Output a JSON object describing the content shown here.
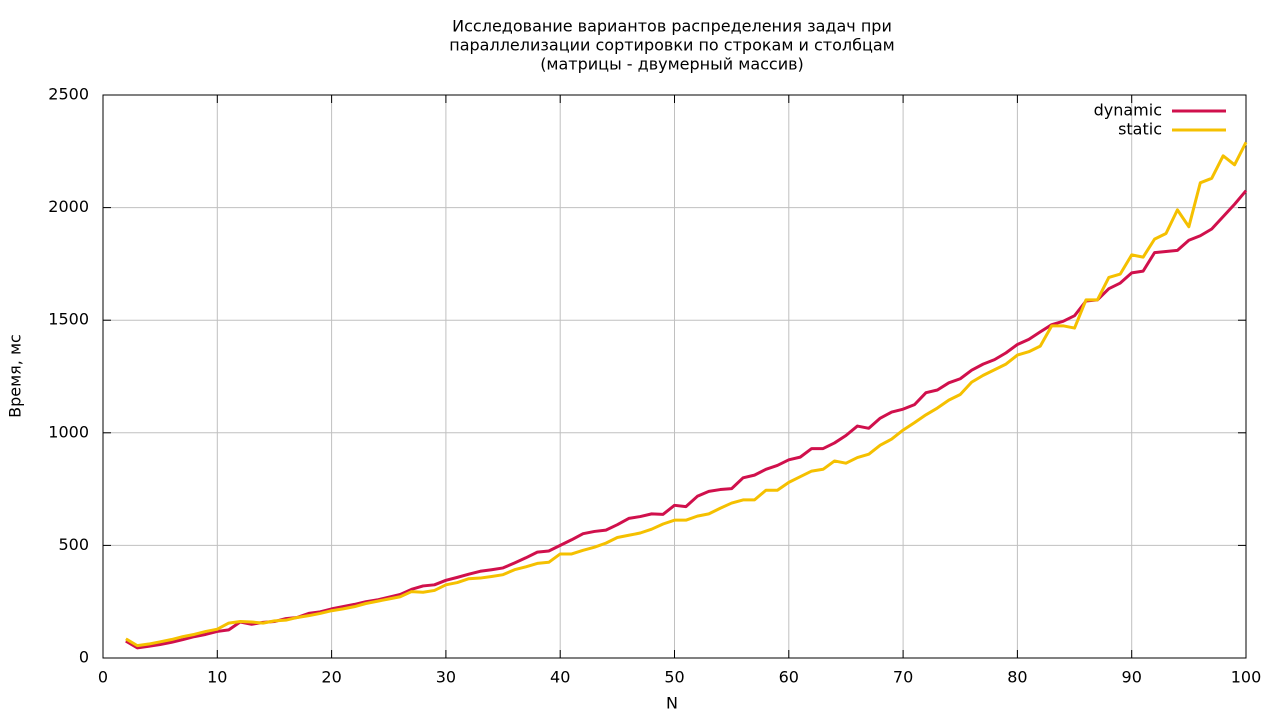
{
  "chart_data": {
    "type": "line",
    "title": [
      "Исследование вариантов распределения задач при",
      "параллелизации сортировки по строкам и столбцам",
      "(матрицы - двумерный массив)"
    ],
    "x_label": "N",
    "y_label": "Время, мс",
    "x": [
      2,
      3,
      4,
      5,
      6,
      7,
      8,
      9,
      10,
      11,
      12,
      13,
      14,
      15,
      16,
      17,
      18,
      19,
      20,
      21,
      22,
      23,
      24,
      25,
      26,
      27,
      28,
      29,
      30,
      31,
      32,
      33,
      34,
      35,
      36,
      37,
      38,
      39,
      40,
      41,
      42,
      43,
      44,
      45,
      46,
      47,
      48,
      49,
      50,
      51,
      52,
      53,
      54,
      55,
      56,
      57,
      58,
      59,
      60,
      61,
      62,
      63,
      64,
      65,
      66,
      67,
      68,
      69,
      70,
      71,
      72,
      73,
      74,
      75,
      76,
      77,
      78,
      79,
      80,
      81,
      82,
      83,
      84,
      85,
      86,
      87,
      88,
      89,
      90,
      91,
      92,
      93,
      94,
      95,
      96,
      97,
      98,
      99,
      100
    ],
    "series": [
      {
        "name": "dynamic",
        "color": "#d0104c",
        "values": [
          75,
          45,
          52,
          60,
          70,
          82,
          95,
          105,
          118,
          125,
          160,
          150,
          158,
          162,
          175,
          180,
          198,
          205,
          218,
          228,
          238,
          250,
          258,
          270,
          282,
          305,
          320,
          325,
          345,
          358,
          372,
          385,
          392,
          400,
          422,
          445,
          470,
          475,
          500,
          525,
          552,
          562,
          568,
          592,
          620,
          628,
          640,
          638,
          678,
          672,
          718,
          740,
          748,
          752,
          800,
          812,
          838,
          855,
          880,
          892,
          930,
          930,
          955,
          988,
          1030,
          1020,
          1065,
          1092,
          1105,
          1125,
          1178,
          1190,
          1222,
          1240,
          1278,
          1305,
          1325,
          1355,
          1392,
          1415,
          1448,
          1480,
          1495,
          1520,
          1585,
          1590,
          1640,
          1665,
          1710,
          1718,
          1800,
          1805,
          1810,
          1855,
          1875,
          1905,
          1960,
          2015,
          2075
        ]
      },
      {
        "name": "static",
        "color": "#f5c000",
        "values": [
          85,
          55,
          62,
          72,
          82,
          95,
          105,
          118,
          128,
          155,
          162,
          160,
          155,
          165,
          168,
          180,
          188,
          198,
          210,
          218,
          228,
          242,
          252,
          262,
          272,
          295,
          292,
          300,
          325,
          335,
          352,
          355,
          362,
          370,
          392,
          405,
          420,
          425,
          462,
          462,
          478,
          492,
          510,
          535,
          545,
          555,
          572,
          595,
          612,
          612,
          630,
          640,
          665,
          688,
          702,
          702,
          745,
          745,
          780,
          805,
          830,
          838,
          875,
          865,
          890,
          905,
          945,
          972,
          1012,
          1045,
          1080,
          1110,
          1145,
          1170,
          1225,
          1255,
          1280,
          1305,
          1345,
          1360,
          1385,
          1475,
          1475,
          1465,
          1590,
          1590,
          1690,
          1705,
          1790,
          1780,
          1860,
          1885,
          1990,
          1915,
          2110,
          2130,
          2230,
          2190,
          2290
        ]
      }
    ],
    "xlim": [
      0,
      100
    ],
    "xticks": [
      0,
      10,
      20,
      30,
      40,
      50,
      60,
      70,
      80,
      90,
      100
    ],
    "ylim": [
      0,
      2500
    ],
    "yticks": [
      0,
      500,
      1000,
      1500,
      2000,
      2500
    ],
    "grid": true,
    "legend": "top-right"
  }
}
